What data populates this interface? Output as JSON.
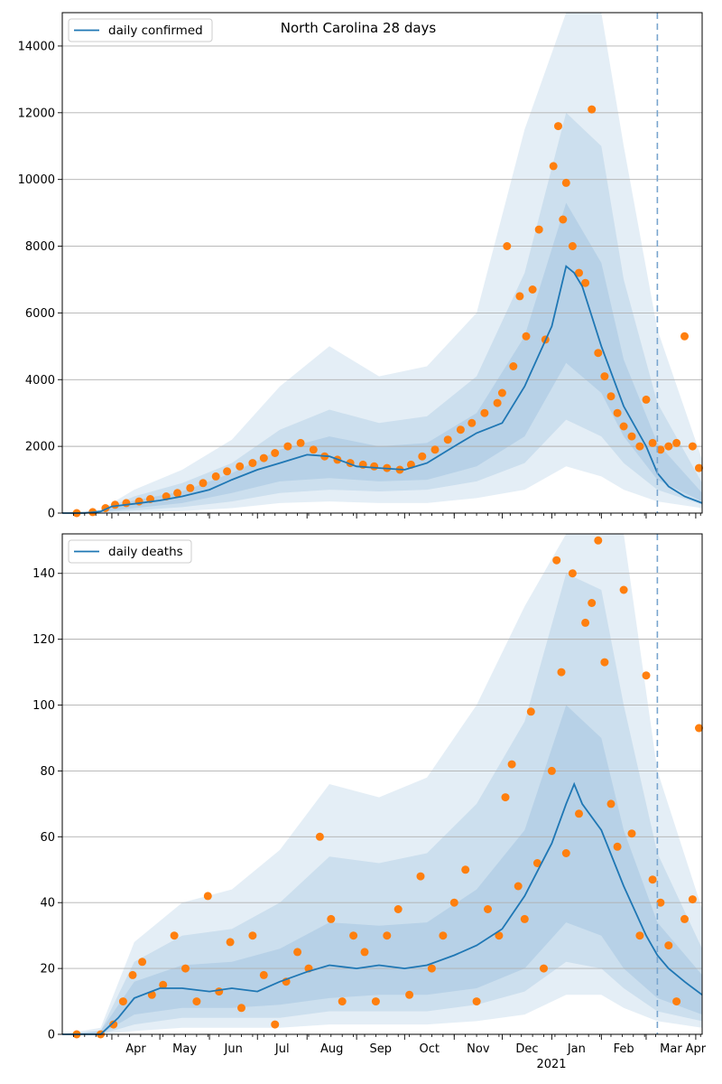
{
  "chart_data": [
    {
      "type": "line",
      "title": "North Carolina 28 days",
      "legend": {
        "label": "daily confirmed",
        "placement": "top-left"
      },
      "xlim": [
        "2020-03-01",
        "2021-04-05"
      ],
      "ylim": [
        0,
        15000
      ],
      "yticks": [
        0,
        2000,
        4000,
        6000,
        8000,
        10000,
        12000,
        14000
      ],
      "grid": "y",
      "forecast_start": "2021-03-08",
      "colors": {
        "line": "#1f77b4",
        "band": "#1f77b4",
        "points": "#ff7f0e",
        "forecast_line": "#7aa6cf"
      },
      "line": {
        "x": [
          "2020-03-01",
          "2020-03-15",
          "2020-03-25",
          "2020-04-01",
          "2020-04-15",
          "2020-05-01",
          "2020-05-15",
          "2020-06-01",
          "2020-06-15",
          "2020-07-01",
          "2020-07-15",
          "2020-08-01",
          "2020-08-15",
          "2020-09-01",
          "2020-09-15",
          "2020-10-01",
          "2020-10-15",
          "2020-11-01",
          "2020-11-15",
          "2020-12-01",
          "2020-12-15",
          "2021-01-01",
          "2021-01-10",
          "2021-01-15",
          "2021-01-20",
          "2021-02-01",
          "2021-02-15",
          "2021-03-01",
          "2021-03-08",
          "2021-03-15",
          "2021-03-25",
          "2021-04-05"
        ],
        "y": [
          0,
          0,
          50,
          200,
          280,
          380,
          500,
          700,
          1000,
          1300,
          1500,
          1750,
          1700,
          1400,
          1350,
          1300,
          1500,
          2000,
          2400,
          2700,
          3800,
          5600,
          7400,
          7200,
          6800,
          5000,
          3200,
          2000,
          1200,
          800,
          500,
          300
        ]
      },
      "bands": [
        {
          "x": [
            "2020-03-01",
            "2020-03-25",
            "2020-04-15",
            "2020-05-15",
            "2020-06-15",
            "2020-07-15",
            "2020-08-15",
            "2020-09-15",
            "2020-10-15",
            "2020-11-15",
            "2020-12-15",
            "2021-01-10",
            "2021-02-01",
            "2021-02-15",
            "2021-03-08",
            "2021-04-05"
          ],
          "lower": [
            0,
            0,
            20,
            60,
            150,
            300,
            350,
            300,
            300,
            450,
            700,
            1400,
            1100,
            700,
            350,
            150
          ],
          "upper": [
            0,
            100,
            700,
            1300,
            2200,
            3800,
            5000,
            4100,
            4400,
            6000,
            11500,
            15000,
            15000,
            11000,
            5500,
            1600
          ]
        },
        {
          "x": [
            "2020-03-01",
            "2020-03-25",
            "2020-04-15",
            "2020-05-15",
            "2020-06-15",
            "2020-07-15",
            "2020-08-15",
            "2020-09-15",
            "2020-10-15",
            "2020-11-15",
            "2020-12-15",
            "2021-01-10",
            "2021-02-01",
            "2021-02-15",
            "2021-03-08",
            "2021-04-05"
          ],
          "lower": [
            0,
            20,
            80,
            180,
            350,
            600,
            700,
            650,
            700,
            950,
            1500,
            2800,
            2300,
            1500,
            700,
            250
          ],
          "upper": [
            0,
            80,
            500,
            900,
            1500,
            2500,
            3100,
            2700,
            2900,
            4100,
            7200,
            12000,
            11000,
            7000,
            3300,
            900
          ]
        },
        {
          "x": [
            "2020-03-01",
            "2020-03-25",
            "2020-04-15",
            "2020-05-15",
            "2020-06-15",
            "2020-07-15",
            "2020-08-15",
            "2020-09-15",
            "2020-10-15",
            "2020-11-15",
            "2020-12-15",
            "2021-01-10",
            "2021-02-01",
            "2021-02-15",
            "2021-03-08",
            "2021-04-05"
          ],
          "lower": [
            0,
            30,
            150,
            300,
            600,
            950,
            1050,
            950,
            1000,
            1400,
            2300,
            4500,
            3600,
            2300,
            1000,
            350
          ],
          "upper": [
            0,
            60,
            380,
            650,
            1200,
            1900,
            2300,
            2000,
            2100,
            3000,
            5300,
            9300,
            7500,
            4600,
            2100,
            600
          ]
        }
      ],
      "points": {
        "x": [
          "2020-03-10",
          "2020-03-20",
          "2020-03-28",
          "2020-04-03",
          "2020-04-10",
          "2020-04-18",
          "2020-04-25",
          "2020-05-05",
          "2020-05-12",
          "2020-05-20",
          "2020-05-28",
          "2020-06-05",
          "2020-06-12",
          "2020-06-20",
          "2020-06-28",
          "2020-07-05",
          "2020-07-12",
          "2020-07-20",
          "2020-07-28",
          "2020-08-05",
          "2020-08-12",
          "2020-08-20",
          "2020-08-28",
          "2020-09-05",
          "2020-09-12",
          "2020-09-20",
          "2020-09-28",
          "2020-10-05",
          "2020-10-12",
          "2020-10-20",
          "2020-10-28",
          "2020-11-05",
          "2020-11-12",
          "2020-11-20",
          "2020-11-28",
          "2020-12-01",
          "2020-12-04",
          "2020-12-08",
          "2020-12-12",
          "2020-12-16",
          "2020-12-20",
          "2020-12-24",
          "2020-12-28",
          "2021-01-02",
          "2021-01-05",
          "2021-01-08",
          "2021-01-10",
          "2021-01-14",
          "2021-01-18",
          "2021-01-22",
          "2021-01-26",
          "2021-01-30",
          "2021-02-03",
          "2021-02-07",
          "2021-02-11",
          "2021-02-15",
          "2021-02-20",
          "2021-02-25",
          "2021-03-01",
          "2021-03-05",
          "2021-03-10",
          "2021-03-15",
          "2021-03-20",
          "2021-03-25",
          "2021-03-30",
          "2021-04-03"
        ],
        "y": [
          0,
          30,
          150,
          250,
          300,
          350,
          420,
          500,
          600,
          750,
          900,
          1100,
          1250,
          1400,
          1500,
          1650,
          1800,
          2000,
          2100,
          1900,
          1700,
          1600,
          1500,
          1450,
          1400,
          1350,
          1300,
          1450,
          1700,
          1900,
          2200,
          2500,
          2700,
          3000,
          3300,
          3600,
          8000,
          4400,
          6500,
          5300,
          6700,
          8500,
          5200,
          10400,
          11600,
          8800,
          9900,
          8000,
          7200,
          6900,
          12100,
          4800,
          4100,
          3500,
          3000,
          2600,
          2300,
          2000,
          3400,
          2100,
          1900,
          2000,
          2100,
          5300,
          2000,
          1350
        ]
      }
    },
    {
      "type": "line",
      "title": "",
      "legend": {
        "label": "daily deaths",
        "placement": "top-left"
      },
      "xlim": [
        "2020-03-01",
        "2021-04-05"
      ],
      "ylim": [
        0,
        152
      ],
      "yticks": [
        0,
        20,
        40,
        60,
        80,
        100,
        120,
        140
      ],
      "xticks": [
        "Apr",
        "May",
        "Jun",
        "Jul",
        "Aug",
        "Sep",
        "Oct",
        "Nov",
        "Dec",
        "Jan",
        "Feb",
        "Mar",
        "Apr"
      ],
      "xtick_dates": [
        "2020-04-01",
        "2020-05-01",
        "2020-06-01",
        "2020-07-01",
        "2020-08-01",
        "2020-09-01",
        "2020-10-01",
        "2020-11-01",
        "2020-12-01",
        "2021-01-01",
        "2021-02-01",
        "2021-03-01",
        "2021-04-01"
      ],
      "year_label": "2021",
      "grid": "y",
      "forecast_start": "2021-03-08",
      "colors": {
        "line": "#1f77b4",
        "band": "#1f77b4",
        "points": "#ff7f0e",
        "forecast_line": "#7aa6cf"
      },
      "line": {
        "x": [
          "2020-03-01",
          "2020-03-25",
          "2020-04-05",
          "2020-04-15",
          "2020-05-01",
          "2020-05-15",
          "2020-06-01",
          "2020-06-15",
          "2020-07-01",
          "2020-07-15",
          "2020-08-01",
          "2020-08-15",
          "2020-09-01",
          "2020-09-15",
          "2020-10-01",
          "2020-10-15",
          "2020-11-01",
          "2020-11-15",
          "2020-12-01",
          "2020-12-15",
          "2021-01-01",
          "2021-01-10",
          "2021-01-15",
          "2021-01-20",
          "2021-02-01",
          "2021-02-15",
          "2021-03-01",
          "2021-03-08",
          "2021-03-15",
          "2021-03-25",
          "2021-04-05"
        ],
        "y": [
          0,
          0,
          5,
          11,
          14,
          14,
          13,
          14,
          13,
          16,
          19,
          21,
          20,
          21,
          20,
          21,
          24,
          27,
          32,
          42,
          58,
          70,
          76,
          70,
          62,
          45,
          30,
          24,
          20,
          16,
          12
        ]
      },
      "bands": [
        {
          "x": [
            "2020-03-01",
            "2020-03-25",
            "2020-04-15",
            "2020-05-15",
            "2020-06-15",
            "2020-07-15",
            "2020-08-15",
            "2020-09-15",
            "2020-10-15",
            "2020-11-15",
            "2020-12-15",
            "2021-01-10",
            "2021-02-01",
            "2021-02-15",
            "2021-03-08",
            "2021-04-05"
          ],
          "lower": [
            0,
            0,
            1,
            2,
            2,
            2,
            3,
            3,
            3,
            4,
            6,
            12,
            12,
            8,
            4,
            2
          ],
          "upper": [
            0,
            2,
            28,
            40,
            44,
            56,
            76,
            72,
            78,
            100,
            130,
            152,
            152,
            152,
            80,
            38
          ]
        },
        {
          "x": [
            "2020-03-01",
            "2020-03-25",
            "2020-04-15",
            "2020-05-15",
            "2020-06-15",
            "2020-07-15",
            "2020-08-15",
            "2020-09-15",
            "2020-10-15",
            "2020-11-15",
            "2020-12-15",
            "2021-01-10",
            "2021-02-01",
            "2021-02-15",
            "2021-03-08",
            "2021-04-05"
          ],
          "lower": [
            0,
            0,
            3,
            5,
            5,
            5,
            7,
            7,
            7,
            9,
            13,
            22,
            20,
            14,
            7,
            4
          ],
          "upper": [
            0,
            1,
            22,
            30,
            32,
            40,
            54,
            52,
            55,
            70,
            95,
            140,
            135,
            100,
            55,
            26
          ]
        },
        {
          "x": [
            "2020-03-01",
            "2020-03-25",
            "2020-04-15",
            "2020-05-15",
            "2020-06-15",
            "2020-07-15",
            "2020-08-15",
            "2020-09-15",
            "2020-10-15",
            "2020-11-15",
            "2020-12-15",
            "2021-01-10",
            "2021-02-01",
            "2021-02-15",
            "2021-03-08",
            "2021-04-05"
          ],
          "lower": [
            0,
            0,
            6,
            8,
            8,
            9,
            11,
            12,
            12,
            14,
            20,
            34,
            30,
            20,
            11,
            6
          ],
          "upper": [
            0,
            1,
            16,
            21,
            22,
            26,
            34,
            33,
            34,
            44,
            62,
            100,
            90,
            62,
            34,
            18
          ]
        }
      ],
      "points": {
        "x": [
          "2020-03-10",
          "2020-03-25",
          "2020-04-02",
          "2020-04-08",
          "2020-04-14",
          "2020-04-20",
          "2020-04-26",
          "2020-05-03",
          "2020-05-10",
          "2020-05-17",
          "2020-05-24",
          "2020-05-31",
          "2020-06-07",
          "2020-06-14",
          "2020-06-21",
          "2020-06-28",
          "2020-07-05",
          "2020-07-12",
          "2020-07-19",
          "2020-07-26",
          "2020-08-02",
          "2020-08-09",
          "2020-08-16",
          "2020-08-23",
          "2020-08-30",
          "2020-09-06",
          "2020-09-13",
          "2020-09-20",
          "2020-09-27",
          "2020-10-04",
          "2020-10-11",
          "2020-10-18",
          "2020-10-25",
          "2020-11-01",
          "2020-11-08",
          "2020-11-15",
          "2020-11-22",
          "2020-11-29",
          "2020-12-03",
          "2020-12-07",
          "2020-12-11",
          "2020-12-15",
          "2020-12-19",
          "2020-12-23",
          "2020-12-27",
          "2021-01-01",
          "2021-01-04",
          "2021-01-07",
          "2021-01-10",
          "2021-01-14",
          "2021-01-18",
          "2021-01-22",
          "2021-01-26",
          "2021-01-30",
          "2021-02-03",
          "2021-02-07",
          "2021-02-11",
          "2021-02-15",
          "2021-02-20",
          "2021-02-25",
          "2021-03-01",
          "2021-03-05",
          "2021-03-10",
          "2021-03-15",
          "2021-03-20",
          "2021-03-25",
          "2021-03-30",
          "2021-04-03"
        ],
        "y": [
          0,
          0,
          3,
          10,
          18,
          22,
          12,
          15,
          30,
          20,
          10,
          42,
          13,
          28,
          8,
          30,
          18,
          3,
          16,
          25,
          20,
          60,
          35,
          10,
          30,
          25,
          10,
          30,
          38,
          12,
          48,
          20,
          30,
          40,
          50,
          10,
          38,
          30,
          72,
          82,
          45,
          35,
          98,
          52,
          20,
          80,
          144,
          110,
          55,
          140,
          67,
          125,
          131,
          150,
          113,
          70,
          57,
          135,
          61,
          30,
          109,
          47,
          40,
          27,
          10,
          35,
          41,
          93
        ]
      }
    }
  ]
}
